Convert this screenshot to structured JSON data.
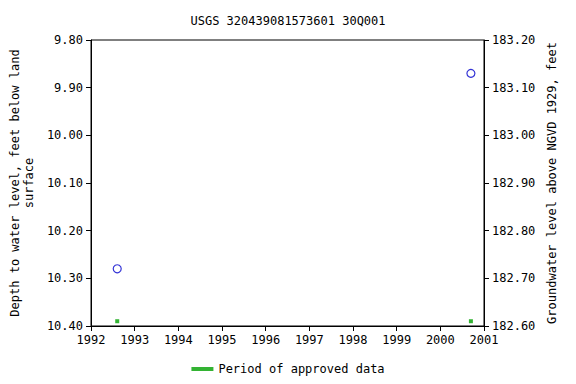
{
  "chart_data": {
    "type": "scatter",
    "title": "USGS 320439081573601 30Q001",
    "ylabel": "Depth to water level, feet below land\nsurface",
    "y2label": "Groundwater level above NGVD 1929, feet",
    "x": [
      1992.6,
      2000.7
    ],
    "xlim": [
      1992,
      2001
    ],
    "xticks": [
      1992,
      1993,
      1994,
      1995,
      1996,
      1997,
      1998,
      1999,
      2000,
      2001
    ],
    "ylim": [
      10.4,
      9.8
    ],
    "yticks": [
      {
        "value": 9.8,
        "label": "9.80"
      },
      {
        "value": 9.9,
        "label": "9.90"
      },
      {
        "value": 10.0,
        "label": "10.00"
      },
      {
        "value": 10.1,
        "label": "10.10"
      },
      {
        "value": 10.2,
        "label": "10.20"
      },
      {
        "value": 10.3,
        "label": "10.30"
      },
      {
        "value": 10.4,
        "label": "10.40"
      }
    ],
    "y2lim": [
      182.6,
      183.2
    ],
    "y2ticks": [
      {
        "value": 182.6,
        "label": "182.60"
      },
      {
        "value": 182.7,
        "label": "182.70"
      },
      {
        "value": 182.8,
        "label": "182.80"
      },
      {
        "value": 182.9,
        "label": "182.90"
      },
      {
        "value": 183.0,
        "label": "183.00"
      },
      {
        "value": 183.1,
        "label": "183.10"
      },
      {
        "value": 183.2,
        "label": "183.20"
      }
    ],
    "grid": false,
    "legend": "bottom",
    "series": [
      {
        "values": [
          10.28,
          9.87
        ],
        "color": "#0000cc",
        "marker": "open_circle"
      },
      {
        "name": "Period of approved data",
        "values": [
          10.39,
          10.39
        ],
        "color": "#00a000",
        "marker": "square"
      }
    ]
  }
}
